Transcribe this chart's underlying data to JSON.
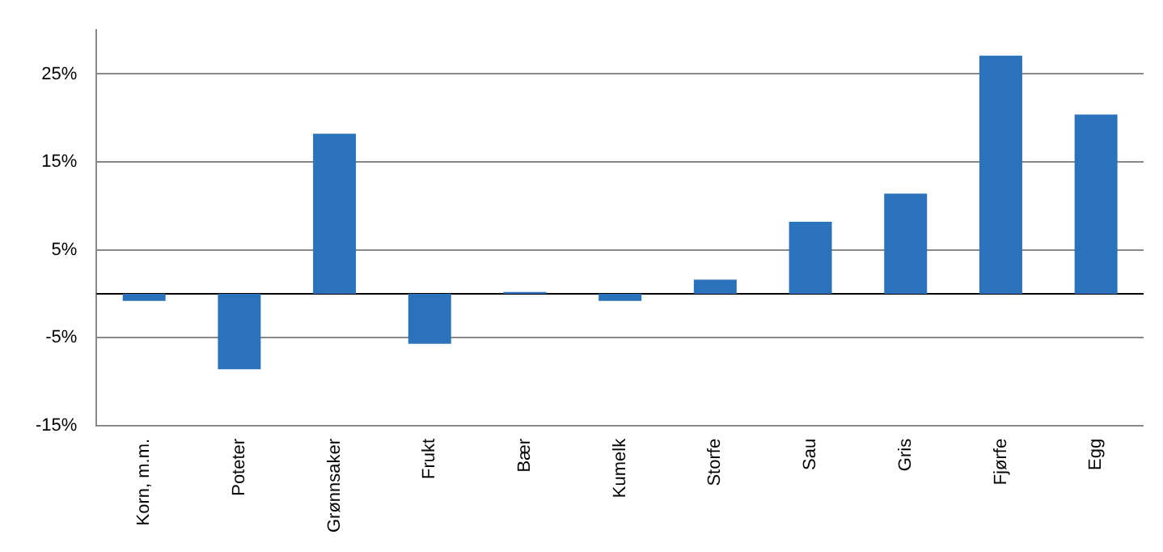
{
  "chart_data": {
    "type": "bar",
    "categories": [
      "Korn, m.m.",
      "Poteter",
      "Grønnsaker",
      "Frukt",
      "Bær",
      "Kumelk",
      "Storfe",
      "Sau",
      "Gris",
      "Fjørfe",
      "Egg"
    ],
    "values": [
      -0.8,
      -8.6,
      18.2,
      -5.7,
      0.2,
      -0.8,
      1.6,
      8.2,
      11.4,
      27.1,
      20.4
    ],
    "color": "#2a72bc",
    "ylim": [
      -15,
      30
    ],
    "yticks": [
      {
        "value": -15,
        "label": "-15%"
      },
      {
        "value": -5,
        "label": "-5%"
      },
      {
        "value": 5,
        "label": "5%"
      },
      {
        "value": 15,
        "label": "15%"
      },
      {
        "value": 25,
        "label": "25%"
      }
    ],
    "grid": "y",
    "legend": false
  }
}
